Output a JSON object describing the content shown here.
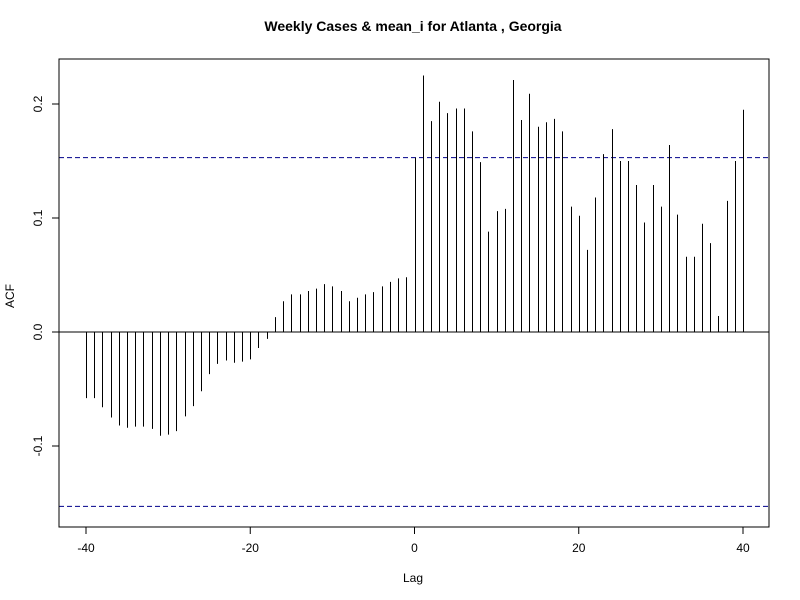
{
  "chart_data": {
    "type": "bar",
    "title": "Weekly Cases & mean_i for Atlanta , Georgia",
    "xlabel": "Lag",
    "ylabel": "ACF",
    "xlim": [
      -40,
      40
    ],
    "ylim": [
      -0.17,
      0.24
    ],
    "x_ticks": [
      -40,
      -20,
      0,
      20,
      40
    ],
    "x_tick_labels": [
      "-40",
      "-20",
      "0",
      "20",
      "40"
    ],
    "y_ticks": [
      -0.1,
      0.0,
      0.1,
      0.2
    ],
    "y_tick_labels": [
      "-0.1",
      "0.0",
      "0.1",
      "0.2"
    ],
    "confidence_band": [
      -0.153,
      0.153
    ],
    "band_color": "#00008B",
    "bar_color": "#000000",
    "lags": [
      -40,
      -39,
      -38,
      -37,
      -36,
      -35,
      -34,
      -33,
      -32,
      -31,
      -30,
      -29,
      -28,
      -27,
      -26,
      -25,
      -24,
      -23,
      -22,
      -21,
      -20,
      -19,
      -18,
      -17,
      -16,
      -15,
      -14,
      -13,
      -12,
      -11,
      -10,
      -9,
      -8,
      -7,
      -6,
      -5,
      -4,
      -3,
      -2,
      -1,
      0,
      1,
      2,
      3,
      4,
      5,
      6,
      7,
      8,
      9,
      10,
      11,
      12,
      13,
      14,
      15,
      16,
      17,
      18,
      19,
      20,
      21,
      22,
      23,
      24,
      25,
      26,
      27,
      28,
      29,
      30,
      31,
      32,
      33,
      34,
      35,
      36,
      37,
      38,
      39,
      40
    ],
    "values": [
      -0.058,
      -0.058,
      -0.066,
      -0.075,
      -0.082,
      -0.084,
      -0.083,
      -0.083,
      -0.085,
      -0.091,
      -0.09,
      -0.087,
      -0.074,
      -0.065,
      -0.052,
      -0.037,
      -0.028,
      -0.025,
      -0.027,
      -0.026,
      -0.024,
      -0.014,
      -0.006,
      0.013,
      0.027,
      0.033,
      0.033,
      0.036,
      0.038,
      0.042,
      0.04,
      0.036,
      0.027,
      0.03,
      0.033,
      0.035,
      0.04,
      0.044,
      0.047,
      0.048,
      0.153,
      0.225,
      0.185,
      0.202,
      0.192,
      0.196,
      0.196,
      0.176,
      0.149,
      0.088,
      0.106,
      0.108,
      0.221,
      0.186,
      0.209,
      0.18,
      0.184,
      0.187,
      0.176,
      0.11,
      0.102,
      0.072,
      0.118,
      0.156,
      0.178,
      0.15,
      0.15,
      0.129,
      0.096,
      0.129,
      0.11,
      0.164,
      0.103,
      0.066,
      0.066,
      0.095,
      0.078,
      0.014,
      0.115,
      0.15,
      0.195
    ]
  }
}
